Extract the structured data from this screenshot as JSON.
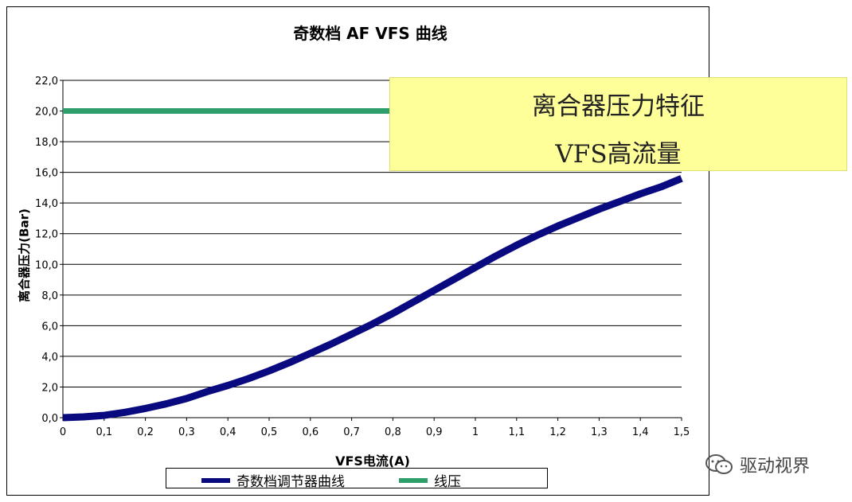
{
  "chart_data": {
    "type": "line",
    "title": "奇数档 AF VFS 曲线",
    "xlabel": "VFS电流(A)",
    "ylabel": "离合器压力(Bar)",
    "xlim": [
      0,
      1.5
    ],
    "ylim": [
      0,
      22
    ],
    "x_ticks": [
      "0",
      "0,1",
      "0,2",
      "0,3",
      "0,4",
      "0,5",
      "0,6",
      "0,7",
      "0,8",
      "0,9",
      "1",
      "1,1",
      "1,2",
      "1,3",
      "1,4",
      "1,5"
    ],
    "y_ticks": [
      "0,0",
      "2,0",
      "4,0",
      "6,0",
      "8,0",
      "10,0",
      "12,0",
      "14,0",
      "16,0",
      "18,0",
      "20,0",
      "22,0"
    ],
    "grid": "horizontal",
    "legend_position": "bottom",
    "series": [
      {
        "name": "奇数档调节器曲线",
        "color": "#0a0a80",
        "x": [
          0,
          0.05,
          0.1,
          0.15,
          0.2,
          0.25,
          0.3,
          0.35,
          0.4,
          0.45,
          0.5,
          0.55,
          0.6,
          0.65,
          0.7,
          0.75,
          0.8,
          0.85,
          0.9,
          0.95,
          1.0,
          1.05,
          1.1,
          1.15,
          1.2,
          1.25,
          1.3,
          1.35,
          1.4,
          1.45,
          1.5
        ],
        "y": [
          0.0,
          0.05,
          0.15,
          0.35,
          0.6,
          0.9,
          1.25,
          1.7,
          2.1,
          2.55,
          3.05,
          3.6,
          4.2,
          4.8,
          5.45,
          6.1,
          6.8,
          7.55,
          8.3,
          9.05,
          9.8,
          10.55,
          11.25,
          11.9,
          12.5,
          13.05,
          13.6,
          14.1,
          14.6,
          15.05,
          15.6
        ]
      },
      {
        "name": "线压",
        "color": "#2e9e6a",
        "x": [
          0,
          0.8
        ],
        "y": [
          20.0,
          20.0
        ]
      }
    ]
  },
  "callout": {
    "line1": "离合器压力特征",
    "line2": "VFS高流量"
  },
  "watermark": {
    "text": "驱动视界",
    "icon": "wechat-icon"
  }
}
